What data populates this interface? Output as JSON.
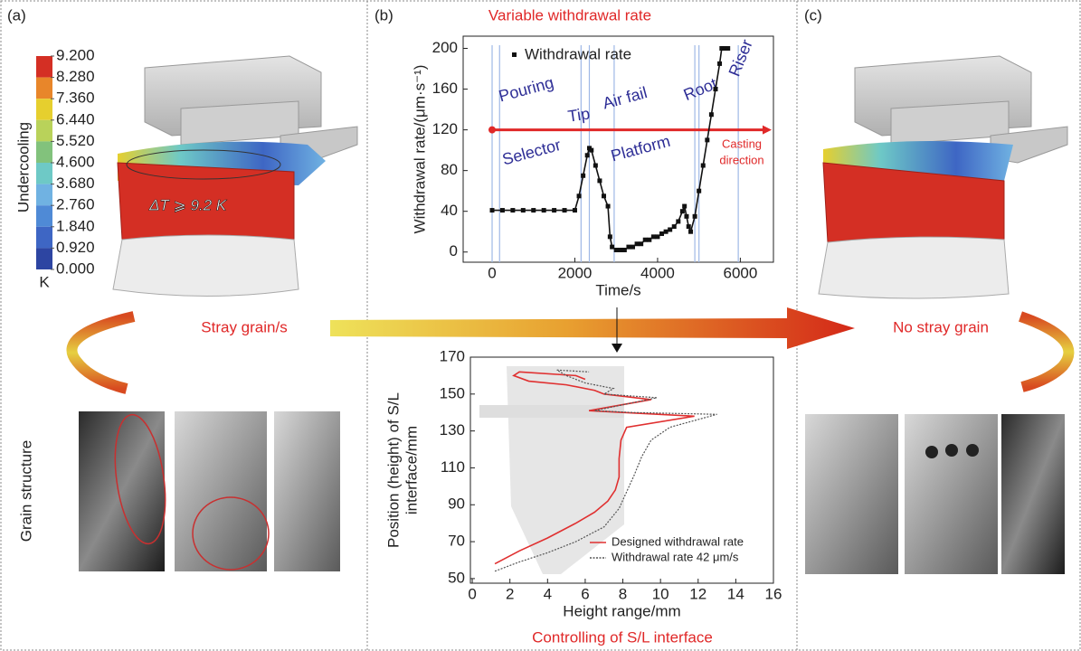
{
  "panels": [
    {
      "label": "(a)",
      "caption": "Stray grain/s",
      "side_label": "Grain structure",
      "annotation": "ΔT ⩾ 9.2 K",
      "colorbar": {
        "title": "Undercooling",
        "unit": "K",
        "ticks": [
          {
            "value": 9.2,
            "label": "9.200"
          },
          {
            "value": 8.28,
            "label": "8.280"
          },
          {
            "value": 7.36,
            "label": "7.360"
          },
          {
            "value": 6.44,
            "label": "6.440"
          },
          {
            "value": 5.52,
            "label": "5.520"
          },
          {
            "value": 4.6,
            "label": "4.600"
          },
          {
            "value": 3.68,
            "label": "3.680"
          },
          {
            "value": 2.76,
            "label": "2.760"
          },
          {
            "value": 1.84,
            "label": "1.840"
          },
          {
            "value": 0.92,
            "label": "0.920"
          },
          {
            "value": 0,
            "label": "0.000"
          }
        ],
        "colors": [
          "#d42f24",
          "#e8862a",
          "#e6cf2e",
          "#b9d25a",
          "#82c27c",
          "#6ec9c6",
          "#70b2e2",
          "#4f8ad6",
          "#3e66c4",
          "#2d45a2"
        ]
      }
    },
    {
      "label": "(b)"
    },
    {
      "label": "(c)",
      "caption": "No stray grain"
    }
  ],
  "chart_data": [
    {
      "type": "line",
      "title": "Variable withdrawal rate",
      "xlabel": "Time/s",
      "ylabel": "Withdrawal rate/(μm·s⁻¹)",
      "x": [
        0,
        250,
        500,
        750,
        1000,
        1250,
        1500,
        1750,
        2000,
        2100,
        2200,
        2300,
        2350,
        2400,
        2500,
        2600,
        2700,
        2800,
        2850,
        2900,
        3000,
        3100,
        3200,
        3300,
        3400,
        3500,
        3600,
        3700,
        3800,
        3900,
        4000,
        4100,
        4200,
        4300,
        4400,
        4500,
        4600,
        4650,
        4700,
        4750,
        4800,
        4900,
        5000,
        5100,
        5200,
        5300,
        5400,
        5500,
        5550,
        5600,
        5700
      ],
      "series": [
        {
          "name": "Withdrawal rate",
          "color": "#111111",
          "values": [
            41,
            41,
            41,
            41,
            41,
            41,
            41,
            41,
            41,
            55,
            75,
            95,
            102,
            100,
            85,
            70,
            55,
            45,
            15,
            5,
            2,
            2,
            2,
            5,
            5,
            8,
            8,
            12,
            12,
            15,
            15,
            18,
            20,
            22,
            25,
            30,
            40,
            45,
            35,
            25,
            20,
            35,
            60,
            85,
            110,
            135,
            160,
            185,
            200,
            200,
            200
          ]
        }
      ],
      "xlim": [
        -700,
        6800
      ],
      "ylim": [
        -10,
        212
      ],
      "xticks": [
        0,
        2000,
        4000,
        6000
      ],
      "yticks": [
        0,
        40,
        80,
        120,
        160,
        200
      ],
      "legend": "upper left",
      "stage_boundaries": [
        0,
        180,
        2150,
        2350,
        2950,
        4900,
        5000,
        5950
      ],
      "boundary_color": "#9fb8e6",
      "stage_labels": [
        "Pouring",
        "Tip",
        "Air fail",
        "Root",
        "Riser",
        "Selector",
        "Platform"
      ],
      "stage_color": "#2e2e96",
      "casting_direction": {
        "value": 120,
        "label": [
          "Casting",
          "direction"
        ],
        "color": "#e02828"
      }
    },
    {
      "type": "line",
      "title": "Controlling of S/L interface",
      "xlabel": "Height range/mm",
      "ylabel": [
        "Position (height) of S/L",
        "interface/mm"
      ],
      "series": [
        {
          "name": "Designed withdrawal rate",
          "color": "#e03030",
          "style": "solid",
          "x": [
            1.2,
            2.5,
            4,
            5.5,
            6.5,
            7.2,
            7.6,
            7.8,
            7.8,
            7.9,
            8.2,
            11.8,
            8,
            6.2,
            9.5,
            7,
            6.5,
            5,
            3,
            2.2,
            2.5,
            5.5,
            6
          ],
          "values": [
            58,
            65,
            72,
            80,
            86,
            92,
            98,
            105,
            115,
            125,
            132,
            138,
            140,
            141,
            147,
            150,
            152,
            155,
            157,
            160,
            162,
            160,
            158
          ]
        },
        {
          "name": "Withdrawal rate 42 μm/s",
          "color": "#555555",
          "style": "dotted",
          "x": [
            1.2,
            2.5,
            4,
            5.5,
            7,
            7.8,
            8.2,
            8.6,
            9,
            9.5,
            10.5,
            13,
            8.5,
            6.5,
            9.8,
            7,
            7.5,
            6,
            5,
            4.5,
            6.2
          ],
          "values": [
            54,
            59,
            64,
            70,
            78,
            88,
            97,
            106,
            116,
            125,
            132,
            139,
            140,
            141,
            148,
            150,
            153,
            156,
            160,
            163,
            162
          ]
        }
      ],
      "xlim": [
        -0.1,
        16
      ],
      "ylim": [
        47.5,
        170
      ],
      "xticks": [
        0,
        2,
        4,
        6,
        8,
        10,
        12,
        14,
        16
      ],
      "yticks": [
        50,
        70,
        90,
        110,
        130,
        150,
        170
      ],
      "legend": "lower right"
    }
  ]
}
